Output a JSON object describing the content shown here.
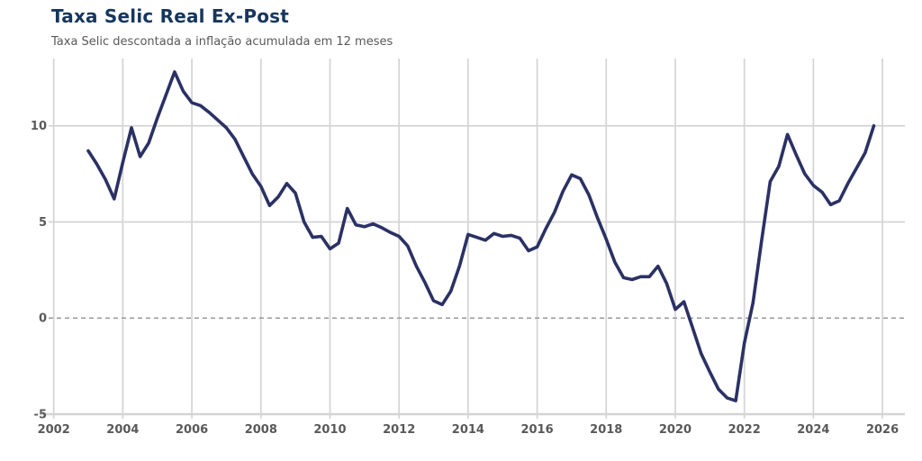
{
  "page": {
    "background": "#ffffff"
  },
  "header": {
    "title": "Taxa Selic Real Ex-Post",
    "subtitle": "Taxa Selic descontada a inflação acumulada em 12 meses",
    "title_color": "#17365d",
    "subtitle_color": "#595959"
  },
  "chart_data": {
    "type": "line",
    "title": "Taxa Selic Real Ex-Post",
    "subtitle": "Taxa Selic descontada a inflação acumulada em 12 meses",
    "x": [
      2003.0,
      2003.25,
      2003.5,
      2003.75,
      2004.0,
      2004.25,
      2004.5,
      2004.75,
      2005.0,
      2005.25,
      2005.5,
      2005.75,
      2006.0,
      2006.25,
      2006.5,
      2006.75,
      2007.0,
      2007.25,
      2007.5,
      2007.75,
      2008.0,
      2008.25,
      2008.5,
      2008.75,
      2009.0,
      2009.25,
      2009.5,
      2009.75,
      2010.0,
      2010.25,
      2010.5,
      2010.75,
      2011.0,
      2011.25,
      2011.5,
      2011.75,
      2012.0,
      2012.25,
      2012.5,
      2012.75,
      2013.0,
      2013.25,
      2013.5,
      2013.75,
      2014.0,
      2014.25,
      2014.5,
      2014.75,
      2015.0,
      2015.25,
      2015.5,
      2015.75,
      2016.0,
      2016.25,
      2016.5,
      2016.75,
      2017.0,
      2017.25,
      2017.5,
      2017.75,
      2018.0,
      2018.25,
      2018.5,
      2018.75,
      2019.0,
      2019.25,
      2019.5,
      2019.75,
      2020.0,
      2020.25,
      2020.5,
      2020.75,
      2021.0,
      2021.25,
      2021.5,
      2021.75,
      2022.0,
      2022.25,
      2022.5,
      2022.75,
      2023.0,
      2023.25,
      2023.5,
      2023.75,
      2024.0,
      2024.25,
      2024.5,
      2024.75,
      2025.0,
      2025.25,
      2025.5,
      2025.75
    ],
    "series": [
      {
        "name": "Taxa Selic real ex-post",
        "color": "#2b3164",
        "values": [
          8.7,
          8.0,
          7.2,
          6.2,
          8.1,
          9.9,
          8.4,
          9.1,
          10.4,
          11.6,
          12.8,
          11.8,
          11.2,
          11.05,
          10.7,
          10.3,
          9.9,
          9.3,
          8.4,
          7.5,
          6.85,
          5.85,
          6.3,
          7.0,
          6.5,
          5.0,
          4.2,
          4.25,
          3.6,
          3.9,
          5.7,
          4.85,
          4.75,
          4.9,
          4.7,
          4.45,
          4.25,
          3.75,
          2.7,
          1.85,
          0.9,
          0.7,
          1.4,
          2.7,
          4.35,
          4.2,
          4.05,
          4.4,
          4.25,
          4.3,
          4.15,
          3.5,
          3.7,
          4.65,
          5.5,
          6.6,
          7.45,
          7.25,
          6.4,
          5.2,
          4.1,
          2.9,
          2.1,
          2.0,
          2.15,
          2.15,
          2.7,
          1.8,
          0.45,
          0.85,
          -0.5,
          -1.85,
          -2.8,
          -3.7,
          -4.15,
          -4.3,
          -1.3,
          0.8,
          4.0,
          7.1,
          7.9,
          9.55,
          8.5,
          7.5,
          6.9,
          6.55,
          5.9,
          6.1,
          7.0,
          7.8,
          8.6,
          10.0
        ]
      }
    ],
    "x_ticks": [
      2002,
      2004,
      2006,
      2008,
      2010,
      2012,
      2014,
      2016,
      2018,
      2020,
      2022,
      2024,
      2026
    ],
    "x_tick_labels": [
      "2002",
      "2004",
      "2006",
      "2008",
      "2010",
      "2012",
      "2014",
      "2016",
      "2018",
      "2020",
      "2022",
      "2024",
      "2026"
    ],
    "y_ticks": [
      -5,
      0,
      5,
      10
    ],
    "y_tick_labels": [
      "-5",
      "0",
      "5",
      "10"
    ],
    "xlim": [
      2001.93,
      2026.65
    ],
    "ylim": [
      -5,
      13.5
    ],
    "grid": "on",
    "zero_line": "dashed",
    "legend": "none",
    "grid_color": "#d4d4d4",
    "zero_line_color": "#9a9a9a",
    "tick_label_color": "#595959"
  }
}
